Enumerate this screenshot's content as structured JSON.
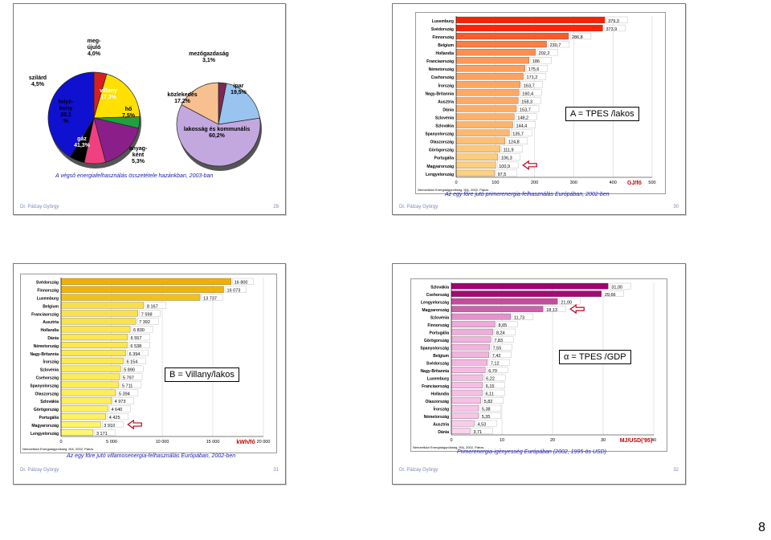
{
  "page_number": "8",
  "slides": [
    {
      "id": 29,
      "footer_author": "Dr. Pálzay György",
      "slide_number": "29",
      "caption": "A végső energiafelhasználás összetétele hazánkban, 2003-ban",
      "chart_data": [
        {
          "type": "pie",
          "categories": [
            "szilárd",
            "folyé-kony",
            "meg-újuló",
            "villany",
            "hő",
            "anyag-ként",
            "gáz"
          ],
          "values": [
            4.5,
            20.1,
            4.0,
            17.3,
            7.5,
            5.3,
            41.3
          ],
          "labels": [
            "szilárd\n4,5%",
            "folyé-\nkony\n20,1\n%",
            "meg-\nújuló\n4,0%",
            "villany\n17,3%",
            "hő\n7,5%",
            "anyag-\nként\n5,3%",
            "gáz\n41,3%"
          ],
          "colors": [
            "#d62020",
            "#ffe000",
            "#20a040",
            "#8a1f8a",
            "#f04080",
            "#000000",
            "#1010d0"
          ]
        },
        {
          "type": "pie",
          "categories": [
            "mezőgazdaság",
            "ipar",
            "lakosság és kommunális",
            "közlekedés"
          ],
          "values": [
            3.1,
            19.5,
            60.2,
            17.2
          ],
          "labels": [
            "mezőgazdaság\n3,1%",
            "ipar\n19,5%",
            "lakosság és kommunális\n60,2%",
            "közlekedés\n17,2%"
          ],
          "colors": [
            "#7a2a50",
            "#99c4f0",
            "#c3a8e0",
            "#f8c090"
          ]
        }
      ]
    },
    {
      "id": 30,
      "footer_author": "Dr. Pálzay György",
      "slide_number": "30",
      "caption": "Az egy főre jutó primerenergia-felhasználás Európában, 2002-ben",
      "source": "Nemzetközi Energiaügynökség, IEA, 2002, Párizs",
      "formula": "A = TPES /lakos",
      "unit": "GJ/fő",
      "chart_data": {
        "type": "bar",
        "orientation": "horizontal",
        "categories": [
          "Luxemburg",
          "Svédország",
          "Finnország",
          "Belgium",
          "Hollandia",
          "Franciaország",
          "Németország",
          "Csehország",
          "Írország",
          "Nagy-Britannia",
          "Ausztria",
          "Dánia",
          "Szlovénia",
          "Szlovákia",
          "Spanyolország",
          "Olaszország",
          "Görögország",
          "Portugália",
          "Magyarország",
          "Lengyelország"
        ],
        "values": [
          379.3,
          373.9,
          286.8,
          230.7,
          202.2,
          186,
          175.6,
          171.2,
          163.7,
          160.4,
          158.3,
          153.7,
          148.2,
          144.4,
          135.7,
          124.8,
          111.9,
          106.3,
          100.9,
          97.5
        ],
        "value_labels": [
          "379,3",
          "373,9",
          "286,8",
          "230,7",
          "202,2",
          "186",
          "175,6",
          "171,2",
          "163,7",
          "160,4",
          "158,3",
          "153,7",
          "148,2",
          "144,4",
          "135,7",
          "124,8",
          "111,9",
          "106,3",
          "100,9",
          "97,5"
        ],
        "xlim": [
          0,
          500
        ],
        "xticks": [
          "0",
          "100",
          "200",
          "300",
          "400",
          "500"
        ],
        "highlight_category": "Magyarország",
        "color_start": "#ffd080",
        "color_end": "#ff2000"
      }
    },
    {
      "id": 31,
      "footer_author": "Dr. Pálzay György",
      "slide_number": "31",
      "caption": "Az egy főre jutó villamosenergia-felhasználás Európában, 2002-ben",
      "source": "Nemzetközi Energiaügynökség, IEA, 2002, Párizs",
      "formula": "B = Villany/lakos",
      "unit": "kWh/fő",
      "chart_data": {
        "type": "bar",
        "orientation": "horizontal",
        "categories": [
          "Svédország",
          "Finnország",
          "Luxemburg",
          "Belgium",
          "Franciaország",
          "Ausztria",
          "Hollandia",
          "Dánia",
          "Németország",
          "Nagy-Britannia",
          "Írország",
          "Szlovénia",
          "Csehország",
          "Spanyolország",
          "Olaszország",
          "Szlovákia",
          "Görögország",
          "Portugália",
          "Magyarország",
          "Lengyelország"
        ],
        "values": [
          16800,
          16073,
          13737,
          8167,
          7598,
          7392,
          6830,
          6557,
          6538,
          6394,
          6154,
          5890,
          5797,
          5711,
          5394,
          4973,
          4640,
          4425,
          3910,
          3171
        ],
        "value_labels": [
          "16 800",
          "16 073",
          "13 737",
          "8 167",
          "7 598",
          "7 392",
          "6 830",
          "6 557",
          "6 538",
          "6 394",
          "6 154",
          "5 890",
          "5 797",
          "5 711",
          "5 394",
          "4 973",
          "4 640",
          "4 425",
          "3 910",
          "3 171"
        ],
        "xlim": [
          0,
          20000
        ],
        "xticks": [
          "0",
          "5 000",
          "10 000",
          "15 000",
          "20 000"
        ],
        "highlight_category": "Magyarország",
        "color_start": "#fff870",
        "color_end": "#f0b000"
      }
    },
    {
      "id": 32,
      "footer_author": "Dr. Pálzay György",
      "slide_number": "32",
      "caption": "Primerenergia-igényesség Európában (2002, 1995-ös USD)",
      "source": "Nemzetközi Energiaügynökség, IEA, 2002, Párizs",
      "formula": "α = TPES /GDP",
      "unit": "MJ/USD('95)",
      "chart_data": {
        "type": "bar",
        "orientation": "horizontal",
        "categories": [
          "Szlovákia",
          "Csehország",
          "Lengyelország",
          "Magyarország",
          "Szlovénia",
          "Finnország",
          "Portugália",
          "Görögország",
          "Spanyolország",
          "Belgium",
          "Svédország",
          "Nagy-Britannia",
          "Luxemburg",
          "Franciaország",
          "Hollandia",
          "Olaszország",
          "Írország",
          "Németország",
          "Ausztria",
          "Dánia"
        ],
        "values": [
          31.0,
          29.66,
          21.0,
          18.13,
          11.73,
          8.65,
          8.24,
          7.83,
          7.55,
          7.42,
          7.12,
          6.7,
          6.22,
          6.15,
          6.11,
          5.82,
          5.38,
          5.35,
          4.53,
          3.71
        ],
        "value_labels": [
          "31,00",
          "29,66",
          "21,00",
          "18,13",
          "11,73",
          "8,65",
          "8,24",
          "7,83",
          "7,55",
          "7,42",
          "7,12",
          "6,70",
          "6,22",
          "6,15",
          "6,11",
          "5,82",
          "5,38",
          "5,35",
          "4,53",
          "3,71"
        ],
        "xlim": [
          0,
          40
        ],
        "xticks": [
          "0",
          "10",
          "20",
          "30",
          "40"
        ],
        "highlight_category": "Magyarország",
        "color_start": "#ffd0f0",
        "color_end": "#a00070"
      }
    }
  ]
}
